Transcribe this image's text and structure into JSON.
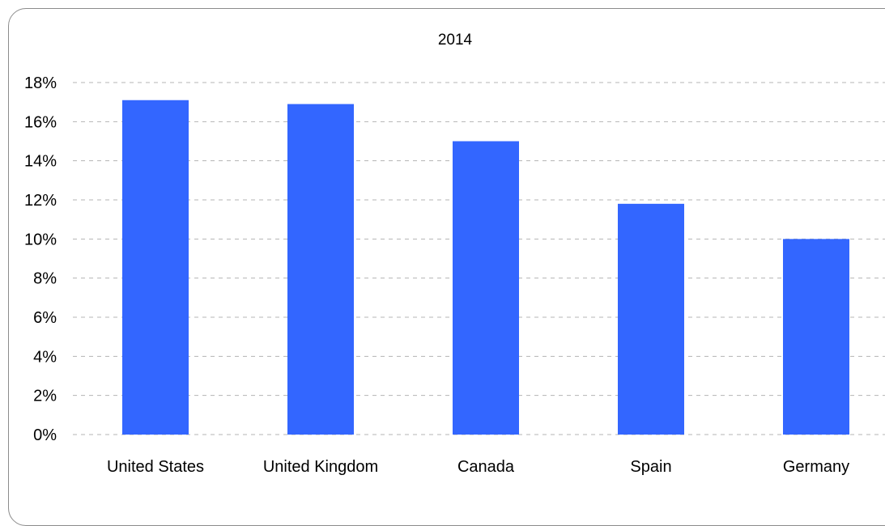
{
  "chart_data": {
    "type": "bar",
    "title": "2014",
    "categories": [
      "United States",
      "United Kingdom",
      "Canada",
      "Spain",
      "Germany"
    ],
    "values": [
      17.1,
      16.9,
      15.0,
      11.8,
      10.0
    ],
    "ylim": [
      0,
      18
    ],
    "yticks": [
      "0%",
      "2%",
      "4%",
      "6%",
      "8%",
      "10%",
      "12%",
      "14%",
      "16%",
      "18%"
    ],
    "ystep": 2,
    "grid": true,
    "bar_color": "#3366ff",
    "grid_color": "#b4b4b4"
  }
}
